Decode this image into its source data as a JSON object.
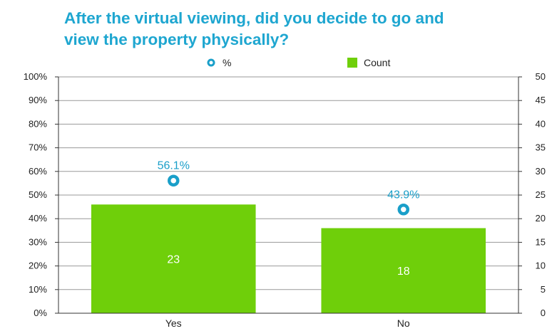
{
  "chart_data": {
    "type": "bar",
    "title_lines": [
      "After the virtual viewing, did you decide to go and",
      "view the property physically?"
    ],
    "categories": [
      "Yes",
      "No"
    ],
    "series": [
      {
        "name": "Count",
        "type": "bar",
        "axis": "right",
        "values": [
          23,
          18
        ],
        "labels": [
          "23",
          "18"
        ]
      },
      {
        "name": "%",
        "type": "scatter",
        "axis": "left",
        "values": [
          56.1,
          43.9
        ],
        "labels": [
          "56.1%",
          "43.9%"
        ]
      }
    ],
    "y_left": {
      "range": [
        0,
        100
      ],
      "ticks": [
        0,
        10,
        20,
        30,
        40,
        50,
        60,
        70,
        80,
        90,
        100
      ],
      "tick_labels": [
        "0%",
        "10%",
        "20%",
        "30%",
        "40%",
        "50%",
        "60%",
        "70%",
        "80%",
        "90%",
        "100%"
      ]
    },
    "y_right": {
      "range": [
        0,
        50
      ],
      "ticks": [
        0,
        5,
        10,
        15,
        20,
        25,
        30,
        35,
        40,
        45,
        50
      ],
      "tick_labels": [
        "0",
        "5",
        "10",
        "15",
        "20",
        "25",
        "30",
        "35",
        "40",
        "45",
        "50"
      ]
    },
    "grid": true,
    "legend_position": "top",
    "colors": {
      "bar": "#6fcf0a",
      "marker": "#1a9fc9",
      "title": "#1ea6d0",
      "grid": "#999999",
      "axis": "#333333"
    }
  }
}
